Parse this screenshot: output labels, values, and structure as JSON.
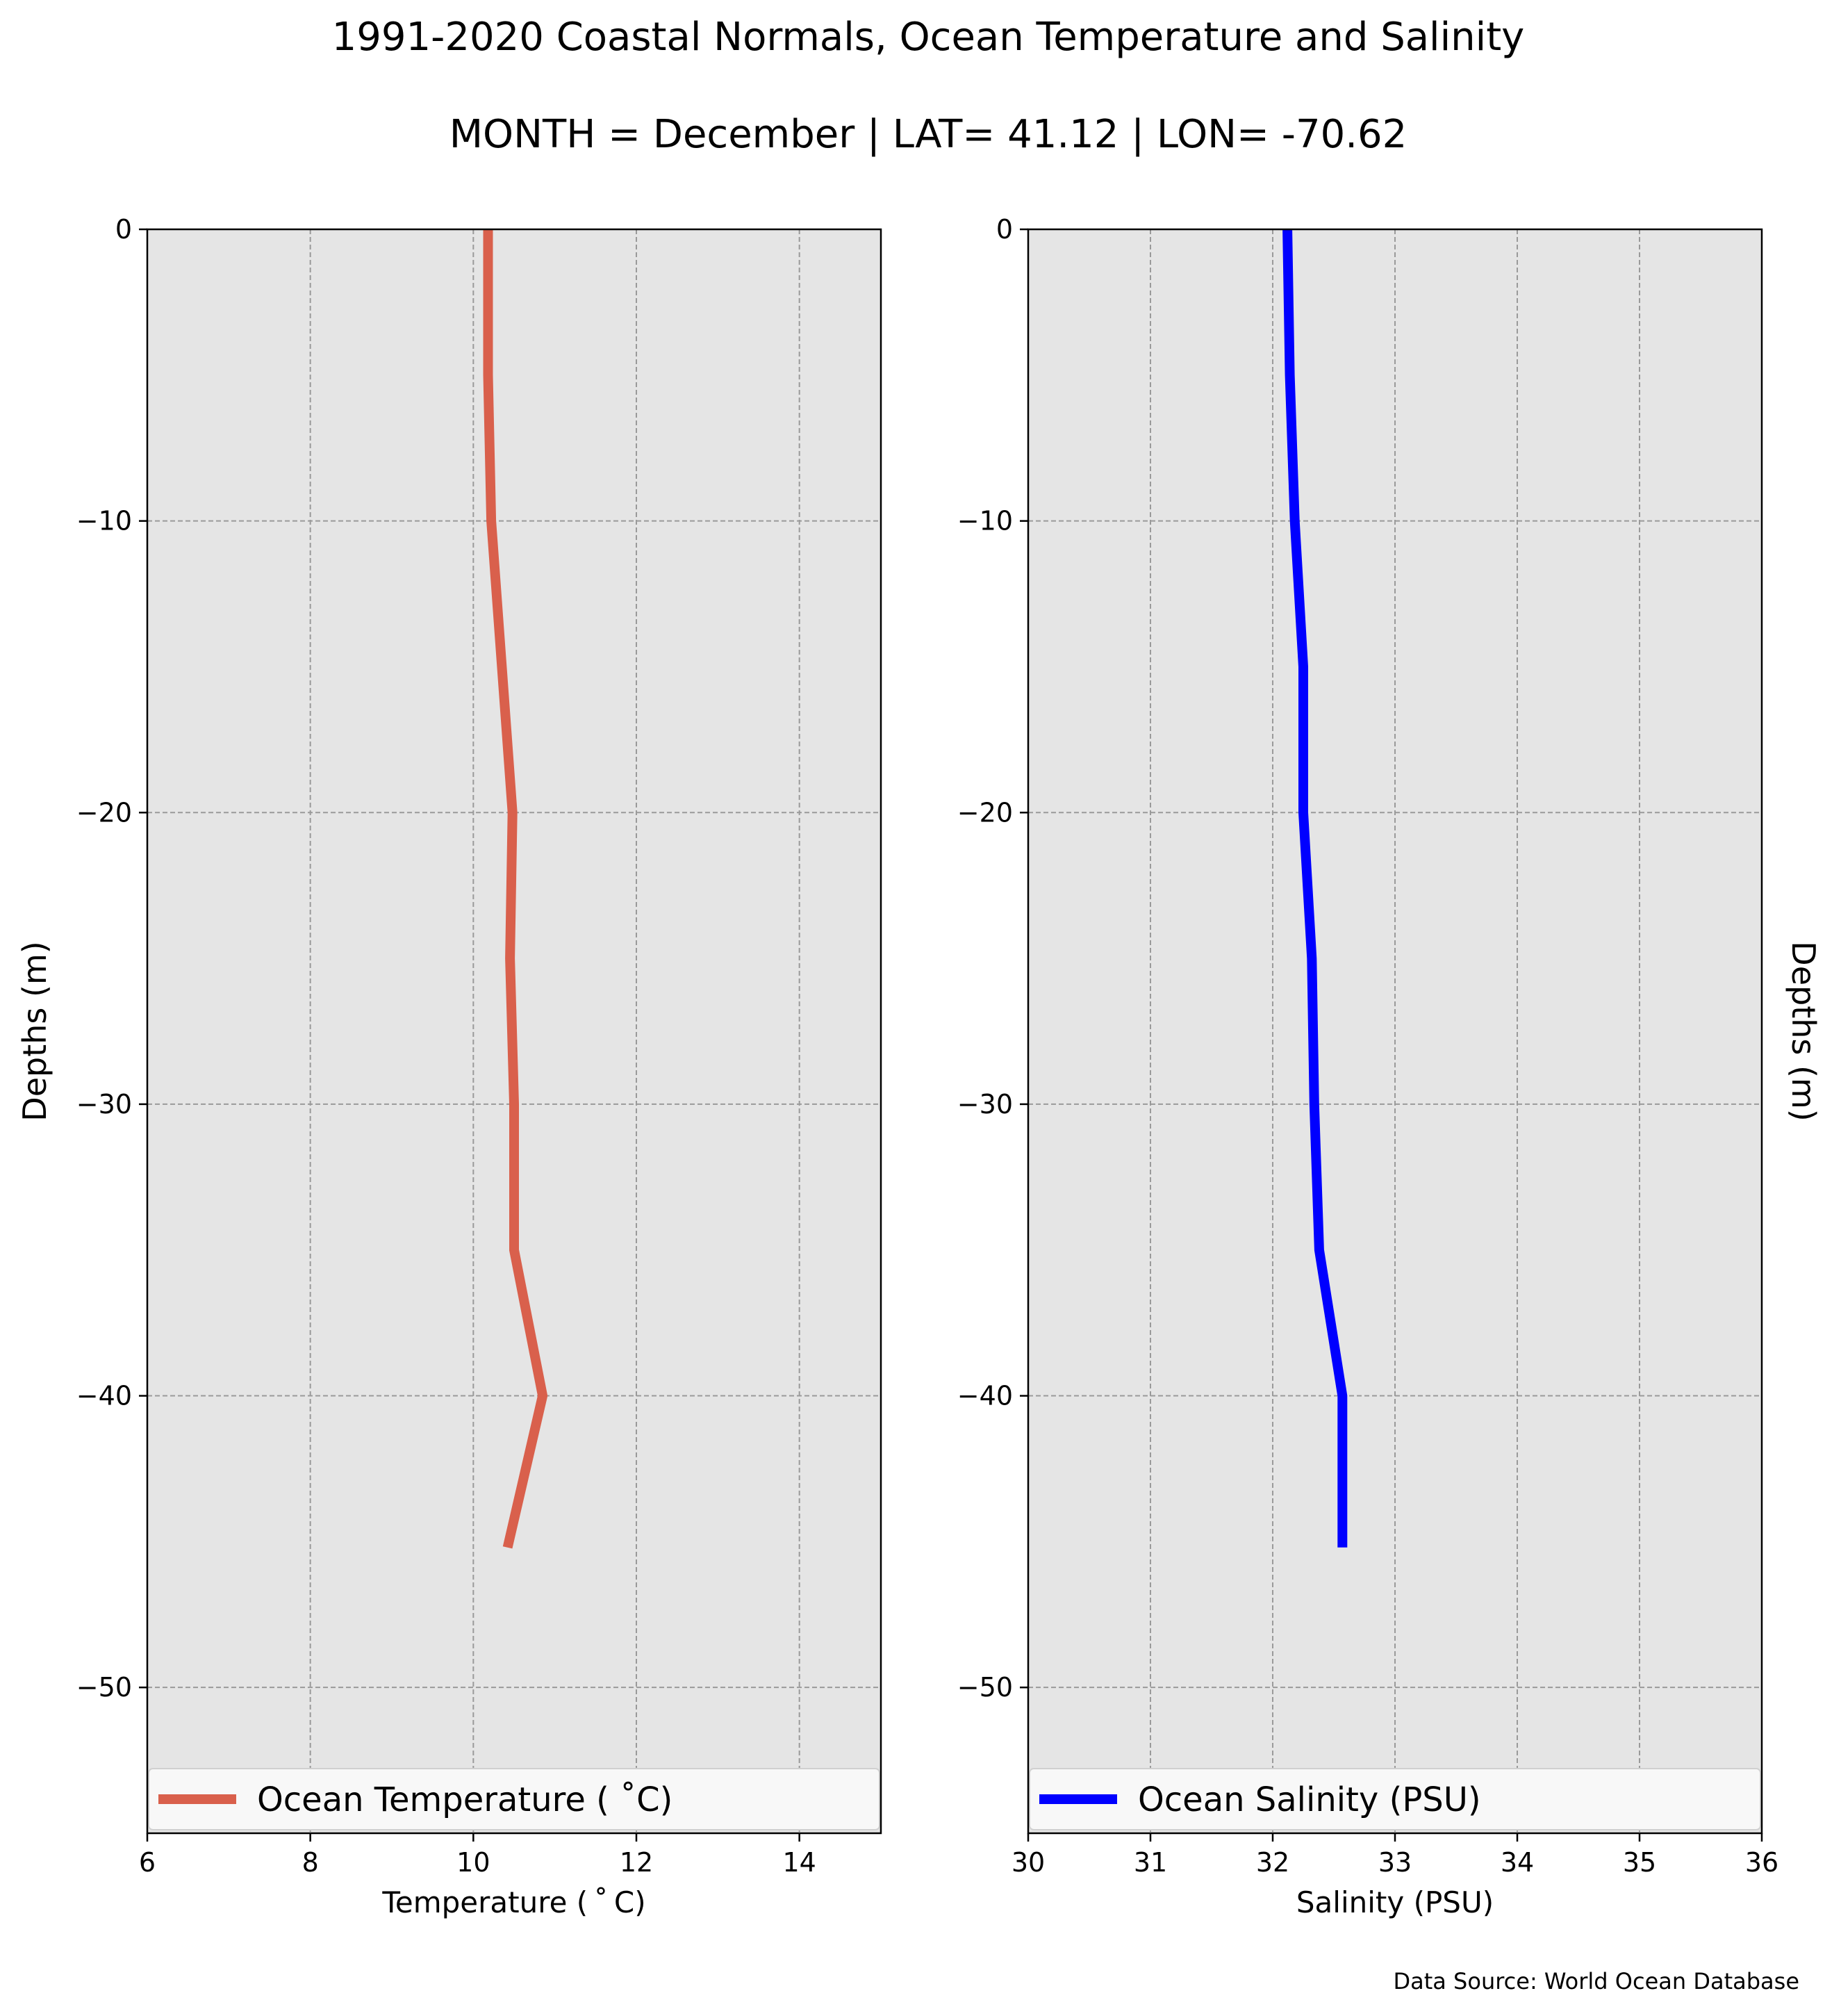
{
  "figure": {
    "title": "1991-2020 Coastal Normals, Ocean Temperature and Salinity",
    "subtitle": "MONTH = December | LAT= 41.12 | LON= -70.62",
    "source": "Data Source: World Ocean Database"
  },
  "chart_data": [
    {
      "type": "line",
      "xlabel": "Temperature ($^\\circ$C)",
      "xlabel_display": "Temperature ( ˚ C)",
      "ylabel": "Depths (m)",
      "xlim": [
        6,
        15
      ],
      "ylim": [
        -55,
        0
      ],
      "xticks": [
        6,
        8,
        10,
        12,
        14
      ],
      "yticks": [
        0,
        -10,
        -20,
        -30,
        -40,
        -50
      ],
      "grid": true,
      "legend_placement": "bottom",
      "series": [
        {
          "name": "Ocean Temperature ( ˚C)",
          "color": "#d9604c",
          "x": [
            10.18,
            10.18,
            10.22,
            10.35,
            10.48,
            10.45,
            10.5,
            10.5,
            10.85,
            10.42
          ],
          "y": [
            0,
            -5,
            -10,
            -15,
            -20,
            -25,
            -30,
            -35,
            -40,
            -45.2
          ]
        }
      ]
    },
    {
      "type": "line",
      "xlabel": "Salinity (PSU)",
      "ylabel": "Depths (m)",
      "xlim": [
        30,
        36
      ],
      "ylim": [
        -55,
        0
      ],
      "xticks": [
        30,
        31,
        32,
        33,
        34,
        35,
        36
      ],
      "yticks": [
        0,
        -10,
        -20,
        -30,
        -40,
        -50
      ],
      "grid": true,
      "legend_placement": "bottom",
      "series": [
        {
          "name": "Ocean Salinity (PSU)",
          "color": "#0000ff",
          "x": [
            32.12,
            32.14,
            32.18,
            32.25,
            32.25,
            32.32,
            32.34,
            32.38,
            32.57,
            32.57
          ],
          "y": [
            0,
            -5,
            -10,
            -15,
            -20,
            -25,
            -30,
            -35,
            -40,
            -45.2
          ]
        }
      ]
    }
  ],
  "colors": {
    "plot_background": "#e5e5e5",
    "grid": "#9a9a9a",
    "legend_background": "#f8f8f8"
  }
}
